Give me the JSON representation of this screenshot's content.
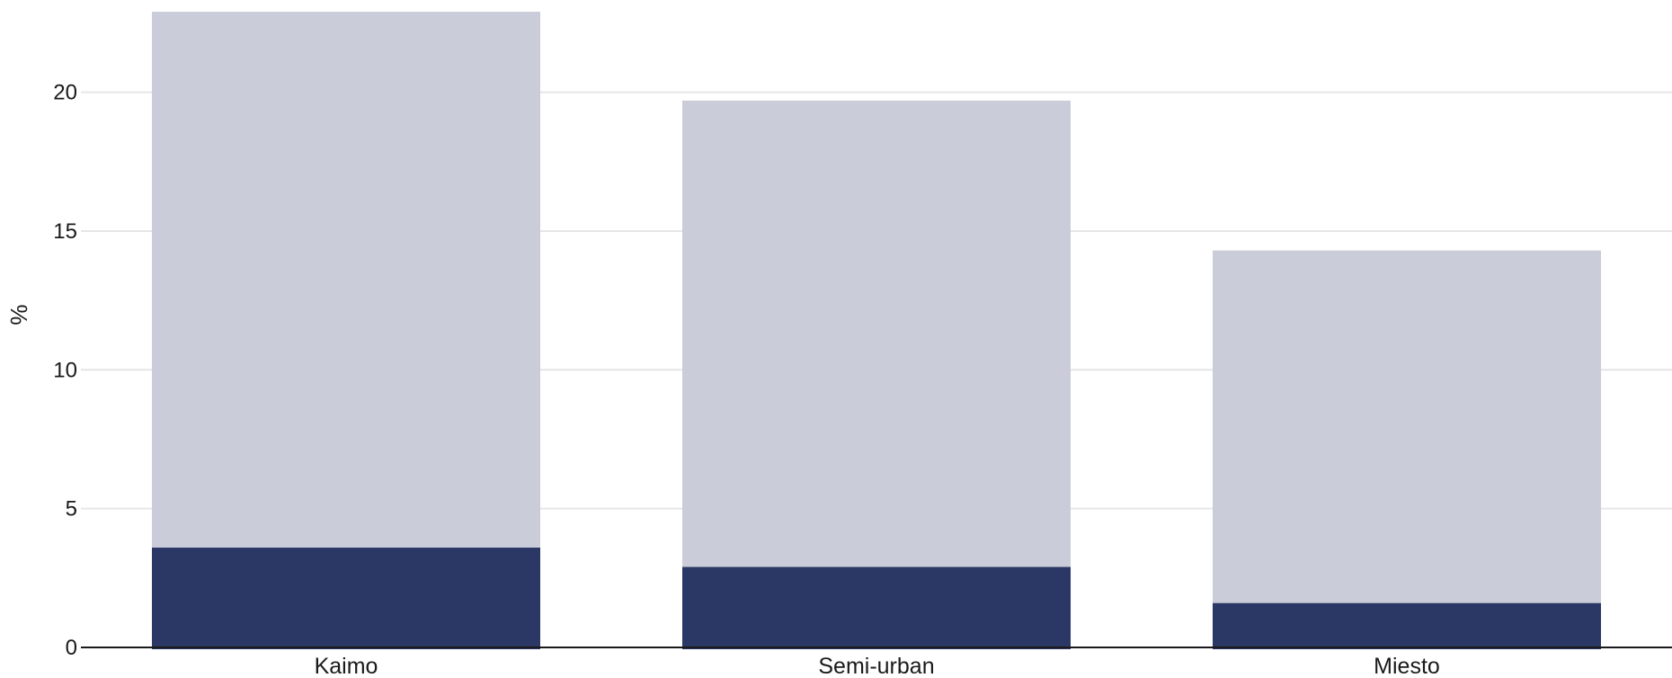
{
  "chart_data": {
    "type": "bar",
    "stacked": true,
    "title": "",
    "xlabel": "",
    "ylabel": "%",
    "ylim": [
      0,
      23
    ],
    "yticks": [
      0,
      5,
      10,
      15,
      20
    ],
    "grid": true,
    "categories": [
      "Kaimo",
      "Semi-urban",
      "Miesto"
    ],
    "series": [
      {
        "values": [
          3.6,
          2.9,
          1.6
        ],
        "color": "#2b3765"
      },
      {
        "values": [
          19.3,
          16.8,
          12.7
        ],
        "color": "#cacdd9"
      }
    ]
  }
}
